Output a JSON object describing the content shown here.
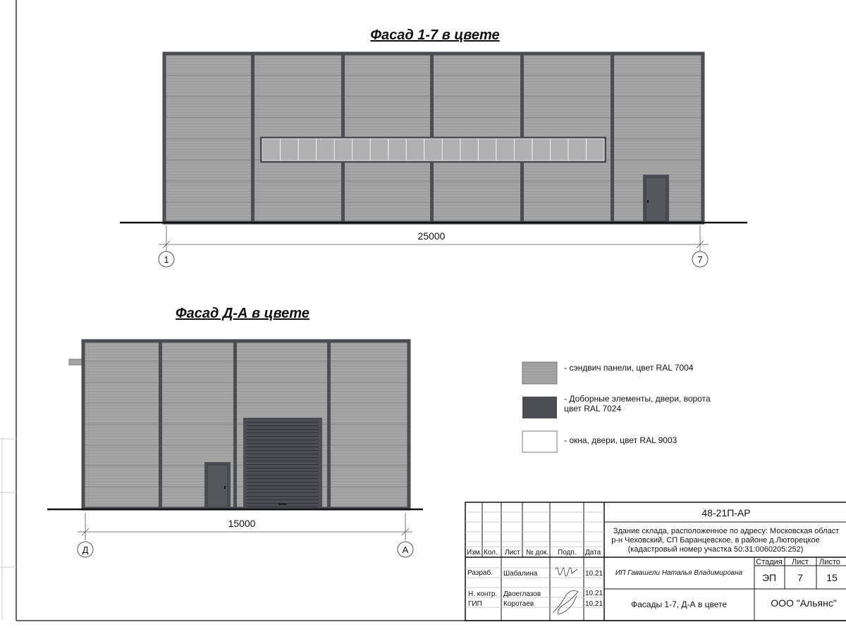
{
  "colors": {
    "panel": "#a3a4a3",
    "trim": "#4b4d52",
    "window": "#ffffff"
  },
  "facade_1": {
    "title": "Фасад 1-7 в цвете",
    "dimension": "25000",
    "axis_left": "1",
    "axis_right": "7"
  },
  "facade_2": {
    "title": "Фасад Д-А в цвете",
    "dimension": "15000",
    "axis_left": "Д",
    "axis_right": "А"
  },
  "legend": [
    {
      "label": "- сэндвич панели, цвет RAL 7004",
      "color": "#a3a4a3"
    },
    {
      "label_line1": "- Доборные элементы, двери, ворота",
      "label_line2": "цвет RAL 7024",
      "color": "#4b4d52"
    },
    {
      "label": "- окна, двери, цвет RAL 9003",
      "color": "#ffffff"
    }
  ],
  "title_block": {
    "code": "48-21П-АР",
    "address_line1": "Здание склада, расположенное по адресу: Московская област",
    "address_line2": "р-н Чеховский, СП Баранцевское, в районе д.Люторецкое",
    "address_line3": "(кадастровый номер участка 50:31:0060205:252)",
    "headers": {
      "izm": "Изм.",
      "kol": "Кол.",
      "list": "Лист",
      "ndok": "№ док.",
      "podp": "Подп.",
      "data": "Дата"
    },
    "rows": [
      {
        "role": "Разраб.",
        "name": "Шабалина",
        "date": "10.21"
      },
      {
        "role": "Н. контр.",
        "name": "Двоеглазов",
        "date": "10.21"
      },
      {
        "role": "ГИП",
        "name": "Коротаев",
        "date": "10.21"
      }
    ],
    "organization_author": "ИП Гавашели Наталья Владимировна",
    "stage_label": "Стадия",
    "sheet_label": "Лист",
    "sheets_label": "Листо",
    "stage": "ЭП",
    "sheet": "7",
    "sheets": "15",
    "sheet_title": "Фасады 1-7, Д-А в цвете",
    "company": "ООО \"Альянс\""
  }
}
